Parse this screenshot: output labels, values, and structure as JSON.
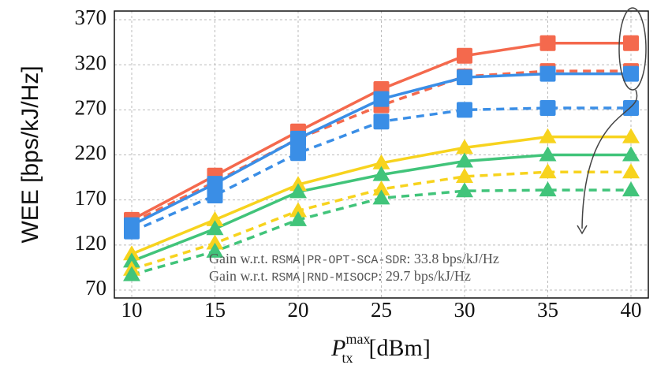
{
  "chart_data": {
    "type": "line",
    "y_label": "WEE [bps/kJ/Hz]",
    "x_label": {
      "base": "P",
      "sub": "tx",
      "sup": "max",
      "unit": "[dBm]"
    },
    "x": [
      10,
      15,
      20,
      25,
      30,
      35,
      40
    ],
    "xlim": [
      10,
      40
    ],
    "xticks": [
      10,
      15,
      20,
      25,
      30,
      35,
      40
    ],
    "ylim": [
      70,
      370
    ],
    "yticks": [
      70,
      120,
      170,
      220,
      270,
      320,
      370
    ],
    "grid": true,
    "series": [
      {
        "color": "#f4694d",
        "dash": false,
        "marker": "square",
        "values": [
          148,
          197,
          246,
          293,
          330,
          344,
          344
        ]
      },
      {
        "color": "#f4694d",
        "dash": true,
        "marker": "square",
        "values": [
          145,
          190,
          238,
          275,
          307,
          313,
          313
        ]
      },
      {
        "color": "#3a8ee6",
        "dash": false,
        "marker": "square",
        "values": [
          142,
          188,
          238,
          282,
          306,
          310,
          310
        ]
      },
      {
        "color": "#3a8ee6",
        "dash": true,
        "marker": "square",
        "values": [
          135,
          175,
          222,
          257,
          270,
          272,
          272
        ]
      },
      {
        "color": "#f7d31e",
        "dash": false,
        "marker": "triangle",
        "values": [
          110,
          148,
          187,
          211,
          228,
          240,
          240
        ]
      },
      {
        "color": "#41c47a",
        "dash": false,
        "marker": "triangle",
        "values": [
          102,
          138,
          179,
          198,
          213,
          220,
          220
        ]
      },
      {
        "color": "#f7d31e",
        "dash": true,
        "marker": "triangle",
        "values": [
          93,
          122,
          158,
          182,
          196,
          201,
          201
        ]
      },
      {
        "color": "#41c47a",
        "dash": true,
        "marker": "triangle",
        "values": [
          87,
          113,
          148,
          172,
          180,
          181,
          181
        ]
      }
    ],
    "annotations": [
      {
        "prefix": "Gain w.r.t. ",
        "code": "RSMA|PR-OPT-SCA-SDR",
        "suffix": ": 33.8 bps/kJ/Hz"
      },
      {
        "prefix": "Gain w.r.t. ",
        "code": "RSMA|RND-MISOCP",
        "suffix": ": 29.7 bps/kJ/Hz"
      }
    ]
  }
}
